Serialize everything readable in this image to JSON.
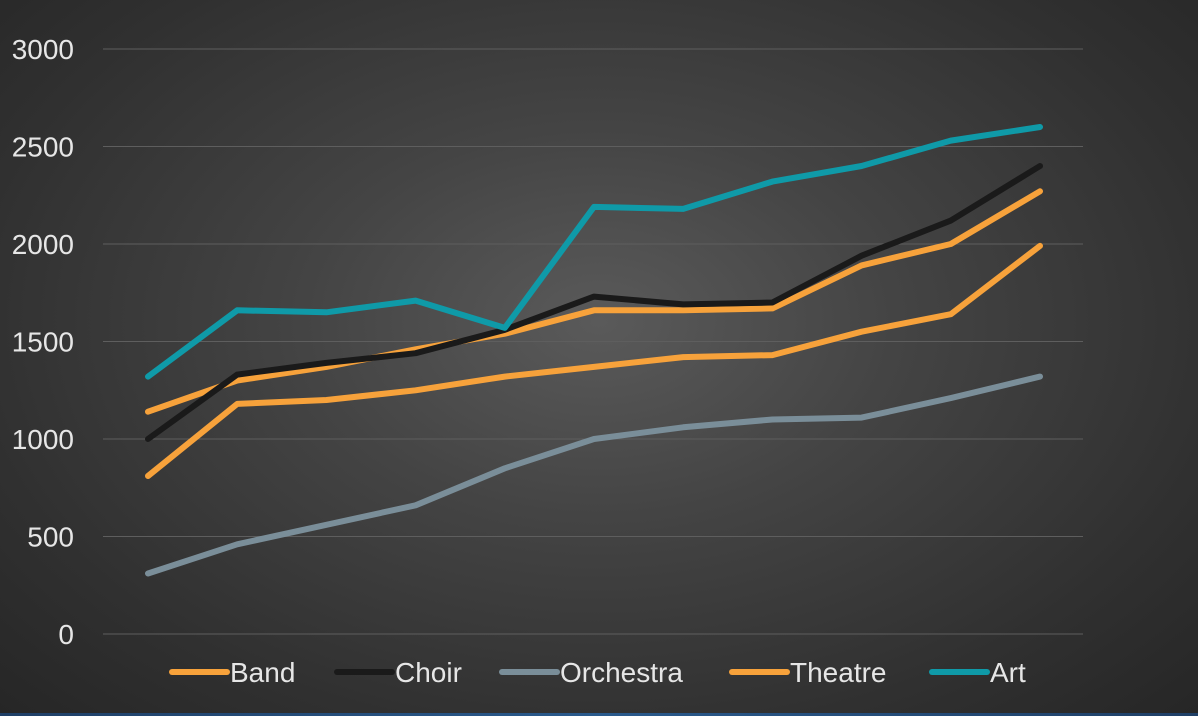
{
  "chart_data": {
    "type": "line",
    "title": "",
    "xlabel": "",
    "ylabel": "",
    "ylim": [
      0,
      3000
    ],
    "yticks": [
      0,
      500,
      1000,
      1500,
      2000,
      2500,
      3000
    ],
    "x": [
      1,
      2,
      3,
      4,
      5,
      6,
      7,
      8,
      9,
      10,
      11
    ],
    "grid": true,
    "legend_position": "bottom",
    "series": [
      {
        "name": "Band",
        "color": "#F7A23B",
        "values": [
          1140,
          1300,
          1370,
          1460,
          1540,
          1660,
          1660,
          1670,
          1890,
          2000,
          2270
        ]
      },
      {
        "name": "Choir",
        "color": "#1A1A1A",
        "values": [
          1000,
          1330,
          1390,
          1440,
          1560,
          1730,
          1690,
          1700,
          1940,
          2120,
          2400
        ]
      },
      {
        "name": "Orchestra",
        "color": "#7A8E99",
        "values": [
          310,
          460,
          560,
          660,
          850,
          1000,
          1060,
          1100,
          1110,
          1210,
          1320
        ]
      },
      {
        "name": "Theatre",
        "color": "#F7A23B",
        "values": [
          810,
          1180,
          1200,
          1250,
          1320,
          1370,
          1420,
          1430,
          1550,
          1640,
          1990
        ]
      },
      {
        "name": "Art",
        "color": "#0F9AA8",
        "values": [
          1320,
          1660,
          1650,
          1710,
          1570,
          2190,
          2180,
          2320,
          2400,
          2530,
          2600
        ]
      }
    ]
  }
}
